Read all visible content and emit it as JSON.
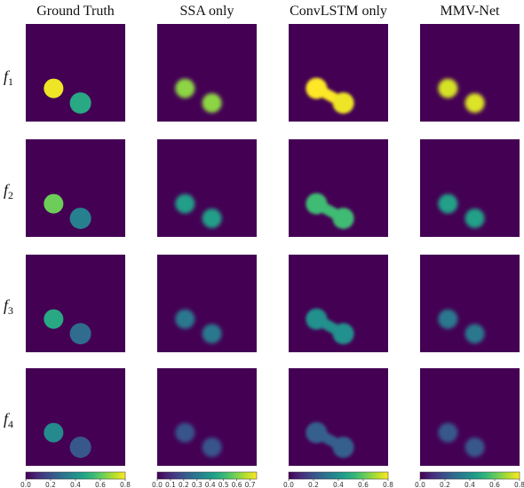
{
  "columns": [
    {
      "title": "Ground Truth",
      "colorbar_ticks": [
        "0.0",
        "0.2",
        "0.4",
        "0.6",
        "0.8"
      ],
      "colorbar_max": 0.8
    },
    {
      "title": "SSA  only",
      "colorbar_ticks": [
        "0.0",
        "0.1",
        "0.2",
        "0.3",
        "0.4",
        "0.5",
        "0.6",
        "0.7"
      ],
      "colorbar_max": 0.75
    },
    {
      "title": "ConvLSTM  only",
      "colorbar_ticks": [
        "0.0",
        "0.2",
        "0.4",
        "0.6",
        "0.8"
      ],
      "colorbar_max": 0.8
    },
    {
      "title": "MMV-Net",
      "colorbar_ticks": [
        "0.0",
        "0.2",
        "0.4",
        "0.6",
        "0.8"
      ],
      "colorbar_max": 0.8
    }
  ],
  "rows": [
    {
      "label": "f",
      "subscript": "1"
    },
    {
      "label": "f",
      "subscript": "2"
    },
    {
      "label": "f",
      "subscript": "3"
    },
    {
      "label": "f",
      "subscript": "4"
    }
  ],
  "colormap": "viridis",
  "colors": {
    "background_purple": "#440154",
    "viridis_stops": [
      "#440154",
      "#482878",
      "#3e4989",
      "#31688e",
      "#26828e",
      "#1f9e89",
      "#35b779",
      "#6ece58",
      "#b5de2b",
      "#fde725"
    ]
  },
  "intensities": [
    [
      [
        0.78,
        0.48
      ],
      [
        0.62,
        0.62
      ],
      [
        0.8,
        0.78
      ],
      [
        0.75,
        0.76
      ]
    ],
    [
      [
        0.62,
        0.35
      ],
      [
        0.42,
        0.42
      ],
      [
        0.55,
        0.55
      ],
      [
        0.45,
        0.45
      ]
    ],
    [
      [
        0.48,
        0.28
      ],
      [
        0.3,
        0.3
      ],
      [
        0.4,
        0.4
      ],
      [
        0.32,
        0.32
      ]
    ],
    [
      [
        0.38,
        0.22
      ],
      [
        0.2,
        0.2
      ],
      [
        0.24,
        0.24
      ],
      [
        0.22,
        0.22
      ]
    ]
  ]
}
